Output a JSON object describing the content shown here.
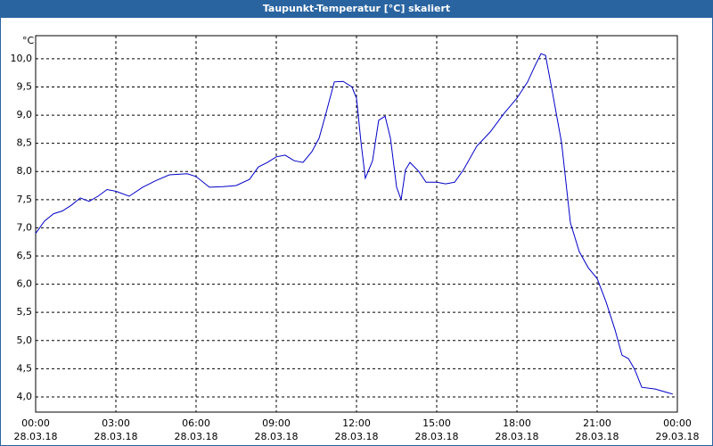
{
  "chart_data": {
    "type": "line",
    "title": "Taupunkt-Temperatur [°C] skaliert",
    "y_unit": "°C",
    "x": [
      0,
      0.33,
      0.67,
      1,
      1.33,
      1.67,
      2,
      2.33,
      2.67,
      3,
      3.5,
      4,
      4.5,
      5,
      5.67,
      6,
      6.5,
      7,
      7.5,
      8,
      8.33,
      8.67,
      9,
      9.33,
      9.67,
      10,
      10.33,
      10.6,
      10.83,
      11.17,
      11.5,
      11.83,
      12,
      12.17,
      12.33,
      12.6,
      12.83,
      13.07,
      13.27,
      13.5,
      13.67,
      13.83,
      14,
      14.33,
      14.6,
      15,
      15.33,
      15.67,
      16,
      16.5,
      17,
      17.5,
      18,
      18.4,
      18.67,
      18.9,
      19.07,
      19.33,
      19.67,
      20,
      20.33,
      20.67,
      21,
      21.33,
      21.67,
      21.93,
      22.17,
      22.4,
      22.67,
      23.17,
      23.6,
      23.83
    ],
    "values": [
      6.9,
      7.12,
      7.25,
      7.3,
      7.4,
      7.53,
      7.47,
      7.56,
      7.68,
      7.65,
      7.56,
      7.72,
      7.84,
      7.94,
      7.96,
      7.91,
      7.72,
      7.73,
      7.75,
      7.86,
      8.08,
      8.16,
      8.26,
      8.29,
      8.19,
      8.16,
      8.35,
      8.59,
      8.98,
      9.59,
      9.6,
      9.5,
      9.3,
      8.51,
      7.88,
      8.19,
      8.91,
      8.98,
      8.59,
      7.72,
      7.5,
      8.03,
      8.16,
      8.0,
      7.81,
      7.81,
      7.78,
      7.81,
      8.03,
      8.45,
      8.7,
      9.02,
      9.3,
      9.59,
      9.87,
      10.09,
      10.06,
      9.4,
      8.51,
      7.09,
      6.58,
      6.29,
      6.1,
      5.69,
      5.19,
      4.74,
      4.68,
      4.49,
      4.17,
      4.14,
      4.08,
      4.05
    ],
    "color": "#0000c8",
    "xlim": [
      0,
      24
    ],
    "xticks": [
      {
        "value": 0,
        "label": "00:00"
      },
      {
        "value": 3,
        "label": "03:00"
      },
      {
        "value": 6,
        "label": "06:00"
      },
      {
        "value": 9,
        "label": "09:00"
      },
      {
        "value": 12,
        "label": "12:00"
      },
      {
        "value": 15,
        "label": "15:00"
      },
      {
        "value": 18,
        "label": "18:00"
      },
      {
        "value": 21,
        "label": "21:00"
      },
      {
        "value": 24,
        "label": "00:00"
      }
    ],
    "xtick_dates": [
      "28.03.18",
      "28.03.18",
      "28.03.18",
      "28.03.18",
      "28.03.18",
      "28.03.18",
      "28.03.18",
      "28.03.18",
      "29.03.18"
    ],
    "ylim": [
      3.73,
      10.41
    ],
    "yticks": [
      {
        "value": 4,
        "label": "4,0"
      },
      {
        "value": 4.5,
        "label": "4,5"
      },
      {
        "value": 5,
        "label": "5,0"
      },
      {
        "value": 5.5,
        "label": "5,5"
      },
      {
        "value": 6,
        "label": "6,0"
      },
      {
        "value": 6.5,
        "label": "6,5"
      },
      {
        "value": 7,
        "label": "7,0"
      },
      {
        "value": 7.5,
        "label": "7,5"
      },
      {
        "value": 8,
        "label": "8,0"
      },
      {
        "value": 8.5,
        "label": "8,5"
      },
      {
        "value": 9,
        "label": "9,0"
      },
      {
        "value": 9.5,
        "label": "9,5"
      },
      {
        "value": 10,
        "label": "10,0"
      }
    ],
    "grid": true
  }
}
